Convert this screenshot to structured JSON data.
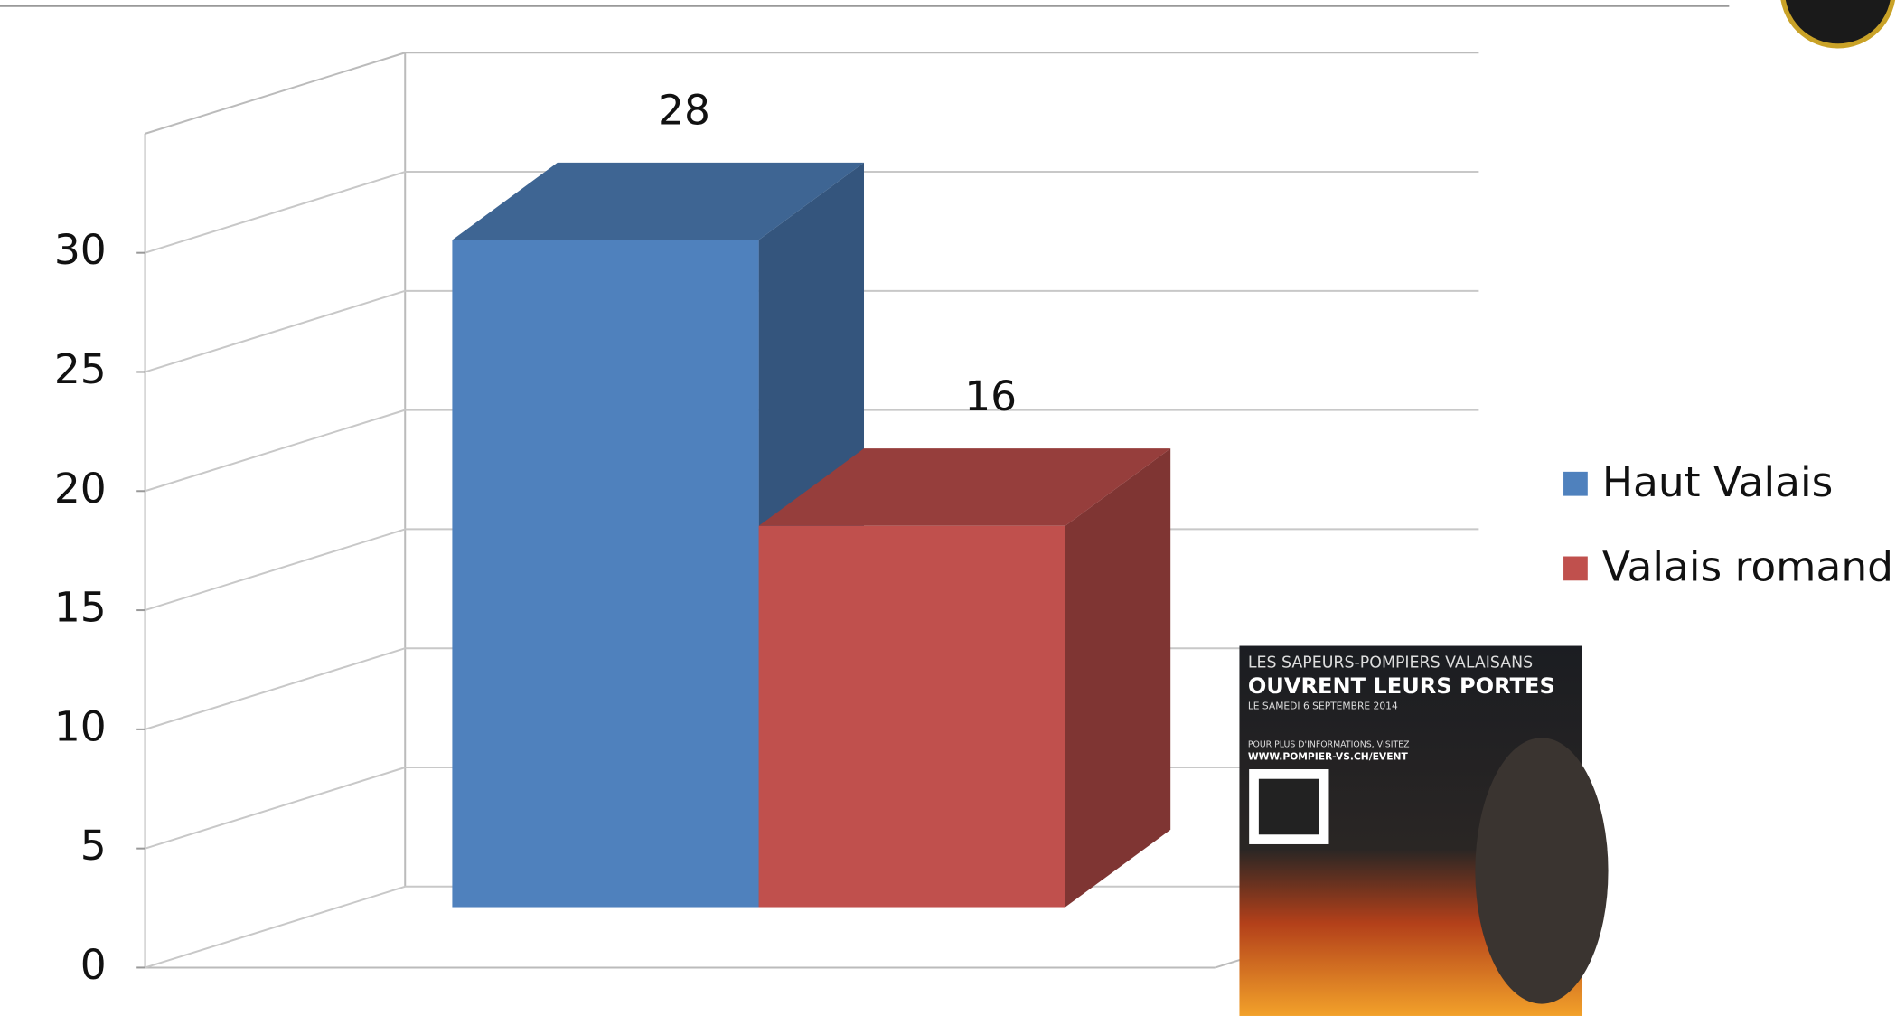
{
  "chart_data": {
    "type": "bar3d",
    "categories": [
      null
    ],
    "series": [
      {
        "name": "Haut Valais",
        "color": "#4f81bd",
        "values": [
          28
        ]
      },
      {
        "name": "Valais romand",
        "color": "#c0504d",
        "values": [
          16
        ]
      }
    ],
    "ylim": [
      0,
      35
    ],
    "yticks": [
      0,
      5,
      10,
      15,
      20,
      25,
      30
    ],
    "grid": true,
    "legend": "right"
  },
  "poster": {
    "lines": [
      "LES SAPEURS-POMPIERS VALAISANS",
      "OUVRENT LEURS PORTES",
      "LE SAMEDI 6 SEPTEMBRE 2014",
      "POUR PLUS D'INFORMATIONS, VISITEZ",
      "WWW.POMPIER-VS.CH/EVENT"
    ]
  }
}
